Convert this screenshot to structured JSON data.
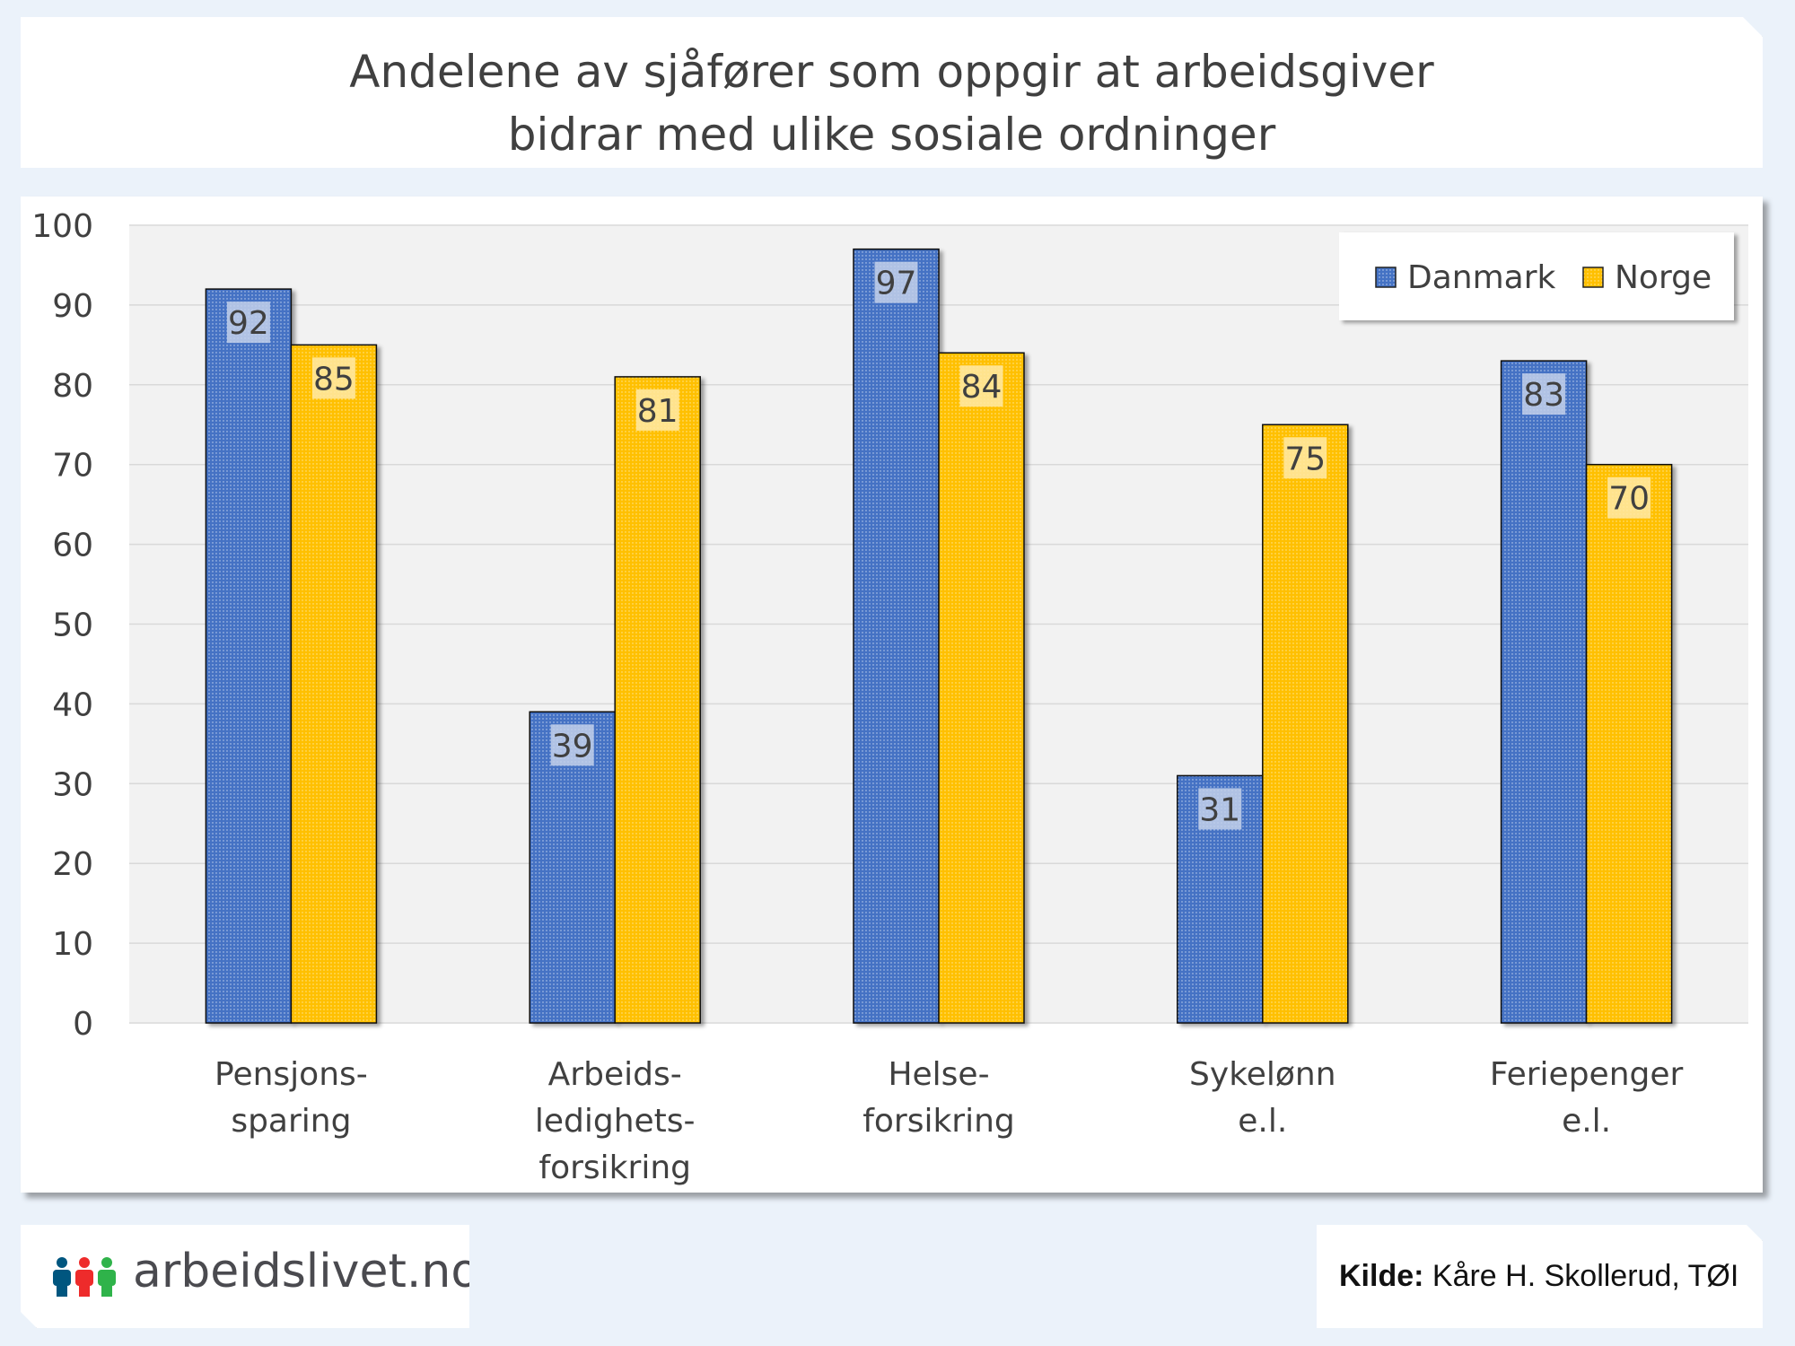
{
  "chart_data": {
    "type": "bar",
    "title": "Andelene av sjåfører som oppgir at arbeidsgiver bidrar med ulike sosiale ordninger",
    "title_lines": [
      "Andelene av sjåfører som oppgir at arbeidsgiver",
      "bidrar med ulike sosiale ordninger"
    ],
    "categories": [
      "Pensjons-sparing",
      "Arbeids-ledighets-forsikring",
      "Helse-forsikring",
      "Sykelønn e.l.",
      "Feriepenger e.l."
    ],
    "category_lines": [
      [
        "Pensjons-",
        "sparing"
      ],
      [
        "Arbeids-",
        "ledighets-",
        "forsikring"
      ],
      [
        "Helse-",
        "forsikring"
      ],
      [
        "Sykelønn",
        "e.l."
      ],
      [
        "Feriepenger",
        "e.l."
      ]
    ],
    "series": [
      {
        "name": "Danmark",
        "values": [
          92,
          39,
          97,
          31,
          83
        ],
        "color": "#4472c4",
        "label_bg": "#c3d0ea"
      },
      {
        "name": "Norge",
        "values": [
          85,
          81,
          84,
          75,
          70
        ],
        "color": "#ffc000",
        "label_bg": "#ffe9a6"
      }
    ],
    "yticks": [
      0,
      10,
      20,
      30,
      40,
      50,
      60,
      70,
      80,
      90,
      100
    ],
    "ylim": [
      0,
      100
    ],
    "xlabel": "",
    "ylabel": "",
    "grid": true,
    "legend": "top-right"
  },
  "footer": {
    "logo_text": "arbeidslivet.no",
    "source_label": "Kilde:",
    "source_text": " Kåre H. Skollerud, TØI"
  }
}
